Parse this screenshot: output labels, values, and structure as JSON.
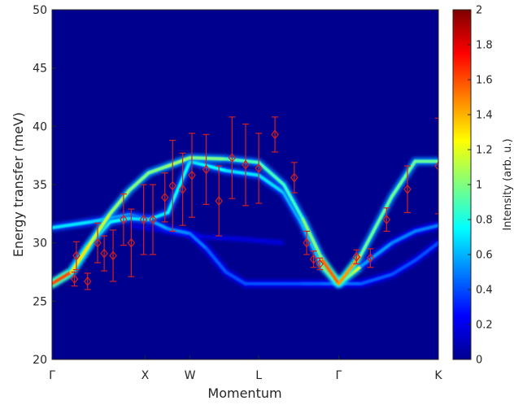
{
  "chart_data": {
    "type": "heatmap",
    "title": "",
    "xlabel": "Momentum",
    "ylabel": "Energy transfer (meV)",
    "ylim": [
      20,
      50
    ],
    "y_ticks": [
      "20",
      "25",
      "30",
      "35",
      "40",
      "45",
      "50"
    ],
    "x_ticks": [
      {
        "label": "Γ",
        "q": 0.0
      },
      {
        "label": "X",
        "q": 0.241
      },
      {
        "label": "W",
        "q": 0.357
      },
      {
        "label": "L",
        "q": 0.535
      },
      {
        "label": "Γ",
        "q": 0.742
      },
      {
        "label": "K",
        "q": 1.0
      }
    ],
    "colorbar": {
      "label": "Intensity (arb. u.)",
      "range": [
        0,
        2
      ],
      "ticks": [
        "0",
        "0.2",
        "0.4",
        "0.6",
        "0.8",
        "1",
        "1.2",
        "1.4",
        "1.6",
        "1.8",
        "2"
      ],
      "colormap": "jet"
    },
    "background_color": "#00008f",
    "branches": [
      {
        "q": [
          0.0,
          0.05,
          0.1,
          0.15,
          0.2,
          0.25,
          0.3,
          0.357,
          0.45,
          0.535,
          0.6,
          0.65,
          0.7,
          0.742,
          0.8,
          0.88,
          0.94,
          1.0
        ],
        "E": [
          26.5,
          27.5,
          30.0,
          32.5,
          34.5,
          36.0,
          36.6,
          37.3,
          37.2,
          36.9,
          35.0,
          32.0,
          28.5,
          26.5,
          29.0,
          34.0,
          37.0,
          37.0
        ],
        "intensity": [
          1.8,
          1.4,
          1.2,
          1.1,
          1.0,
          1.0,
          1.0,
          1.1,
          0.9,
          0.85,
          0.9,
          0.8,
          1.2,
          1.9,
          1.0,
          0.9,
          1.0,
          0.9
        ]
      },
      {
        "q": [
          0.0,
          0.05,
          0.1,
          0.15,
          0.2,
          0.25,
          0.3,
          0.357,
          0.45,
          0.535,
          0.6,
          0.65,
          0.7,
          0.742,
          0.8,
          0.88,
          0.94,
          1.0
        ],
        "E": [
          26.5,
          27.5,
          30.0,
          31.8,
          32.1,
          32.0,
          32.6,
          37.0,
          36.2,
          35.8,
          34.3,
          31.5,
          28.0,
          26.5,
          28.0,
          30.0,
          31.0,
          31.5
        ],
        "intensity": [
          1.8,
          1.2,
          0.9,
          0.8,
          0.7,
          0.7,
          0.7,
          0.8,
          0.7,
          0.7,
          0.7,
          0.7,
          0.9,
          1.8,
          0.6,
          0.5,
          0.5,
          0.5
        ]
      },
      {
        "q": [
          0.0,
          0.1,
          0.2,
          0.25,
          0.3,
          0.357,
          0.4,
          0.45,
          0.5,
          0.535,
          0.6,
          0.65,
          0.7,
          0.742,
          0.8,
          0.88,
          0.94,
          1.0
        ],
        "E": [
          31.3,
          31.8,
          32.4,
          32.0,
          31.2,
          30.8,
          29.5,
          27.5,
          26.5,
          26.5,
          26.5,
          26.5,
          26.5,
          26.5,
          26.5,
          27.3,
          28.5,
          30.0
        ],
        "intensity": [
          0.7,
          0.7,
          0.65,
          0.6,
          0.55,
          0.5,
          0.45,
          0.4,
          0.4,
          0.4,
          0.4,
          0.4,
          0.45,
          0.45,
          0.45,
          0.4,
          0.4,
          0.4
        ]
      }
    ],
    "faint_branch": {
      "q": [
        0.2,
        0.3,
        0.4,
        0.5,
        0.6
      ],
      "E": [
        31.5,
        31.0,
        30.5,
        30.3,
        30.0
      ],
      "intensity": 0.25
    },
    "series": [
      {
        "name": "",
        "marker": "diamond",
        "color": "#d42020",
        "points": [
          {
            "q": 0.058,
            "E": 26.9,
            "err": 0.6
          },
          {
            "q": 0.063,
            "E": 28.9,
            "err": 1.2
          },
          {
            "q": 0.092,
            "E": 26.7,
            "err": 0.7
          },
          {
            "q": 0.118,
            "E": 30.0,
            "err": 1.7
          },
          {
            "q": 0.135,
            "E": 29.1,
            "err": 1.5
          },
          {
            "q": 0.158,
            "E": 28.9,
            "err": 2.2
          },
          {
            "q": 0.185,
            "E": 32.0,
            "err": 2.2
          },
          {
            "q": 0.205,
            "E": 30.0,
            "err": 2.9
          },
          {
            "q": 0.237,
            "E": 32.0,
            "err": 3.0
          },
          {
            "q": 0.261,
            "E": 32.0,
            "err": 3.0
          },
          {
            "q": 0.292,
            "E": 33.9,
            "err": 2.1
          },
          {
            "q": 0.312,
            "E": 34.9,
            "err": 3.9
          },
          {
            "q": 0.338,
            "E": 34.6,
            "err": 3.1
          },
          {
            "q": 0.362,
            "E": 35.8,
            "err": 3.6
          },
          {
            "q": 0.399,
            "E": 36.3,
            "err": 3.0
          },
          {
            "q": 0.432,
            "E": 33.6,
            "err": 3.0
          },
          {
            "q": 0.466,
            "E": 37.3,
            "err": 3.5
          },
          {
            "q": 0.501,
            "E": 36.7,
            "err": 3.5
          },
          {
            "q": 0.535,
            "E": 36.4,
            "err": 3.0
          },
          {
            "q": 0.577,
            "E": 39.3,
            "err": 1.5
          },
          {
            "q": 0.627,
            "E": 35.6,
            "err": 1.3
          },
          {
            "q": 0.659,
            "E": 30.0,
            "err": 1.0
          },
          {
            "q": 0.677,
            "E": 28.6,
            "err": 0.7
          },
          {
            "q": 0.693,
            "E": 28.2,
            "err": 0.5
          },
          {
            "q": 0.788,
            "E": 28.8,
            "err": 0.6
          },
          {
            "q": 0.824,
            "E": 28.7,
            "err": 0.8
          },
          {
            "q": 0.866,
            "E": 32.0,
            "err": 1.0
          },
          {
            "q": 0.92,
            "E": 34.6,
            "err": 2.0
          },
          {
            "q": 1.0,
            "E": 36.6,
            "err": 4.1
          }
        ]
      }
    ]
  }
}
